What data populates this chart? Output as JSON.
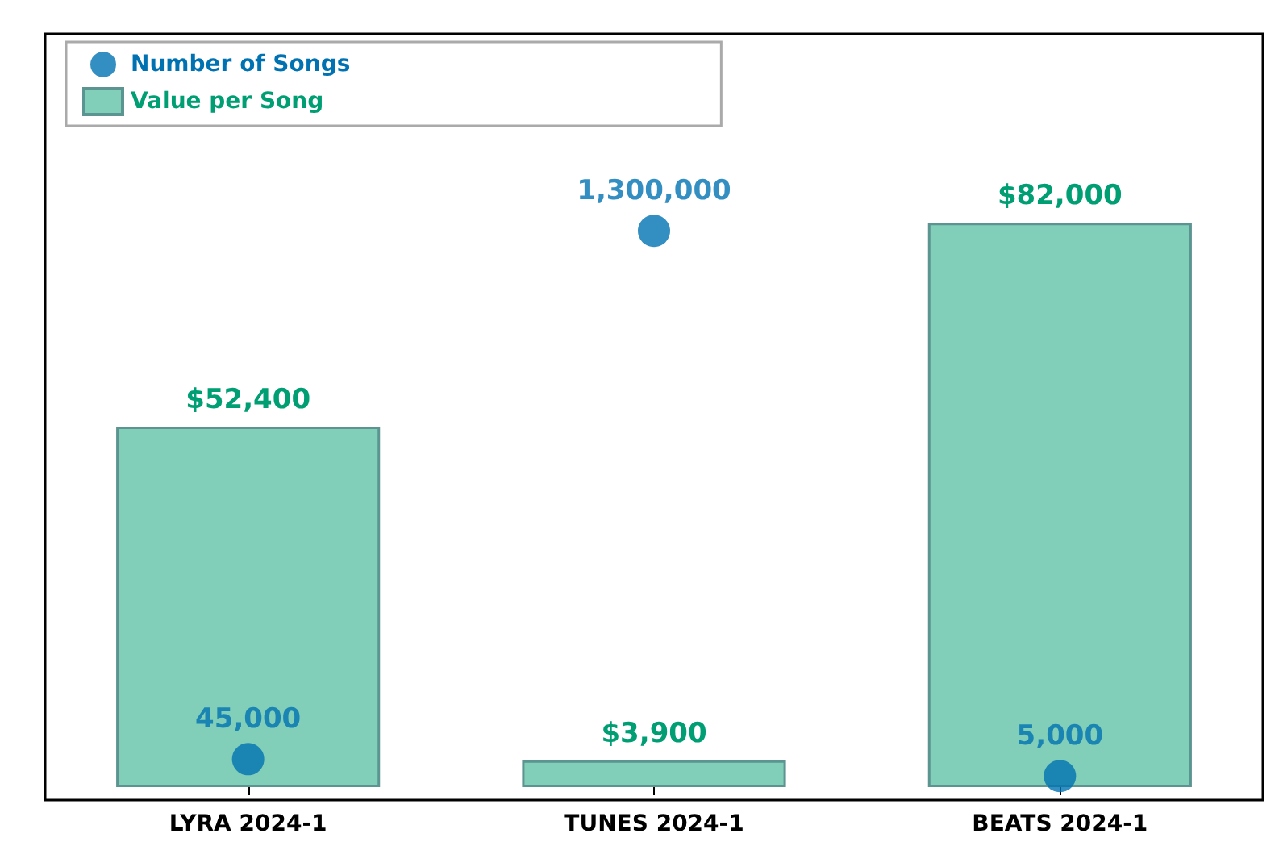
{
  "chart_data": {
    "type": "bar",
    "categories": [
      "LYRA 2024-1",
      "TUNES 2024-1",
      "BEATS 2024-1"
    ],
    "series": [
      {
        "name": "Value per Song",
        "color": "#82cfb9",
        "values": [
          52400,
          3900,
          82000
        ],
        "value_labels": [
          "$52,400",
          "$3,900",
          "$82,000"
        ]
      },
      {
        "name": "Number of Songs",
        "type": "scatter",
        "axis": "y2",
        "color": "#0072b2",
        "values": [
          45000,
          1300000,
          5000
        ],
        "value_labels": [
          "45,000",
          "1,300,000",
          "5,000"
        ]
      }
    ],
    "tick_labels": "x",
    "legend": "top left",
    "marker": "circle"
  }
}
